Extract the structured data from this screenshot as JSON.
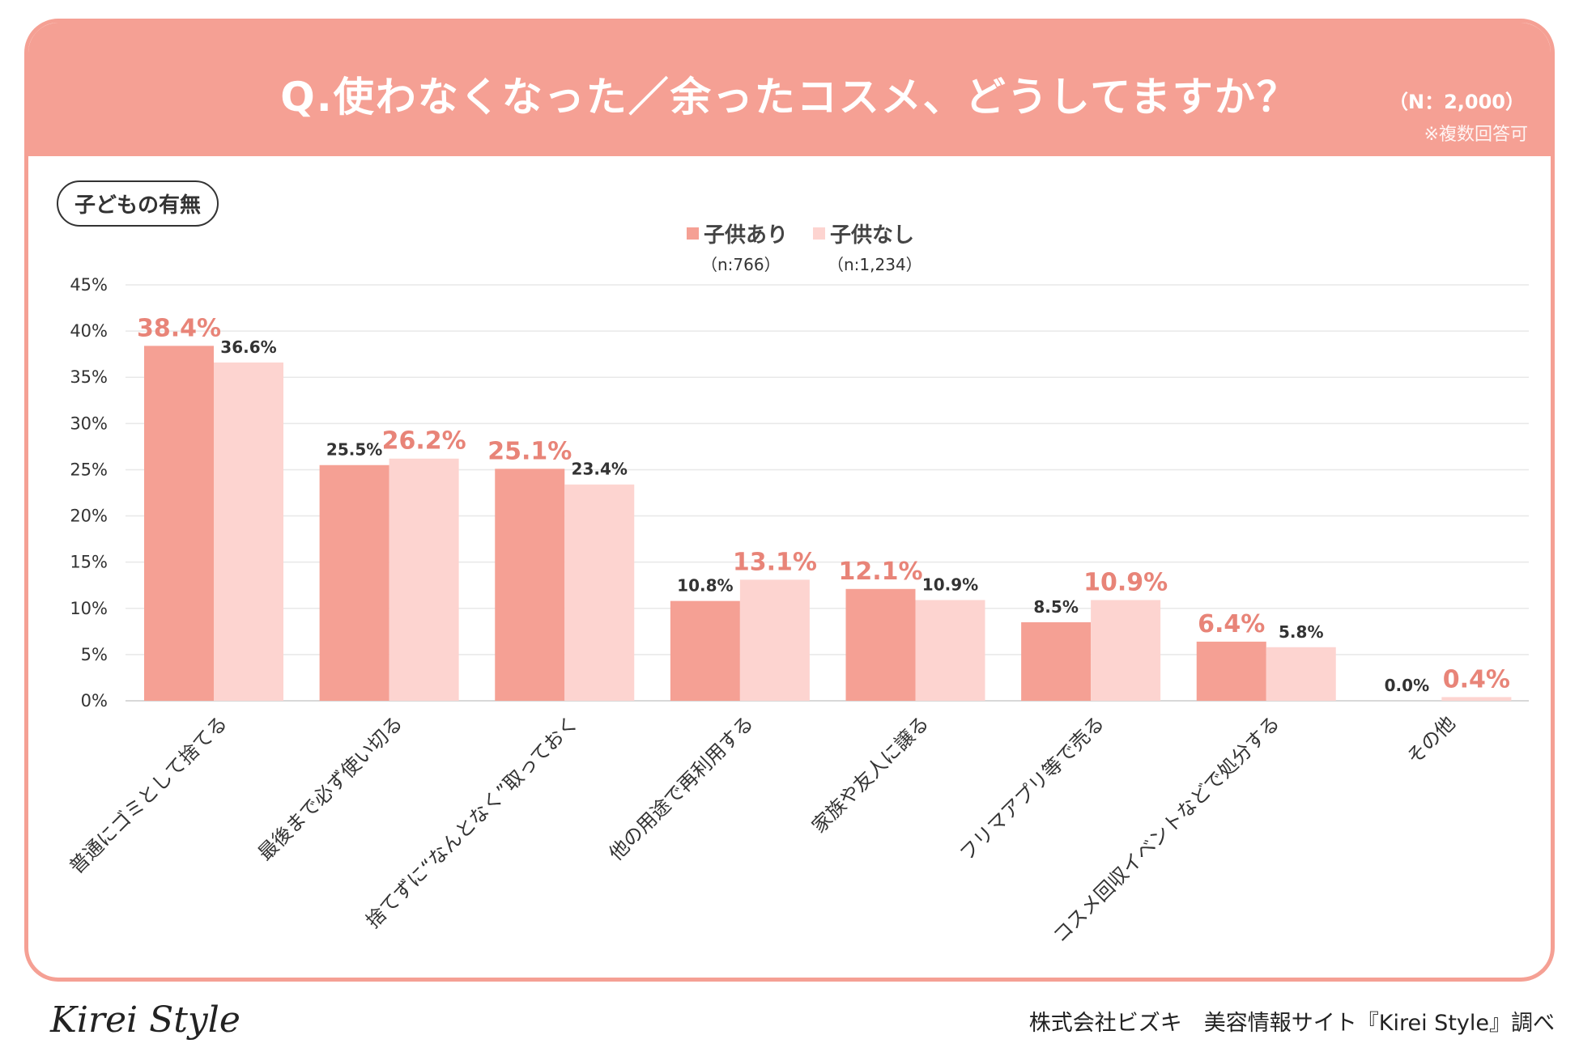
{
  "header": {
    "title": "Q.使わなくなった／余ったコスメ、どうしてますか？",
    "sample": "（N：2,000）",
    "note": "※複数回答可"
  },
  "segment_tag": "子どもの有無",
  "legend": [
    {
      "name": "子供あり",
      "n": "（n:766）",
      "color": "#f5a094"
    },
    {
      "name": "子供なし",
      "n": "（n:1,234）",
      "color": "#fdd4d0"
    }
  ],
  "chart_data": {
    "type": "bar",
    "title": "Q.使わなくなった／余ったコスメ、どうしてますか？",
    "categories": [
      "普通にゴミとして捨てる",
      "最後まで必ず使い切る",
      "捨てずに“なんとなく”取っておく",
      "他の用途で再利用する",
      "家族や友人に譲る",
      "フリマアプリ等で売る",
      "コスメ回収イベントなどで処分する",
      "その他"
    ],
    "series": [
      {
        "name": "子供あり",
        "values": [
          38.4,
          25.5,
          25.1,
          10.8,
          12.1,
          8.5,
          6.4,
          0.0
        ],
        "labels": [
          "38.4%",
          "25.5%",
          "25.1%",
          "10.8%",
          "12.1%",
          "8.5%",
          "6.4%",
          "0.0%"
        ]
      },
      {
        "name": "子供なし",
        "values": [
          36.6,
          26.2,
          23.4,
          13.1,
          10.9,
          10.9,
          5.8,
          0.4
        ],
        "labels": [
          "36.6%",
          "26.2%",
          "23.4%",
          "13.1%",
          "10.9%",
          "10.9%",
          "5.8%",
          "0.4%"
        ]
      }
    ],
    "ylim": [
      0,
      45
    ],
    "yticks": [
      "0%",
      "5%",
      "10%",
      "15%",
      "20%",
      "25%",
      "30%",
      "35%",
      "40%",
      "45%"
    ],
    "highlight_color": "#e88478",
    "grid": true
  },
  "footer": {
    "logo": "Kirei Style",
    "credit": "株式会社ビズキ　美容情報サイト『Kirei Style』調べ"
  }
}
